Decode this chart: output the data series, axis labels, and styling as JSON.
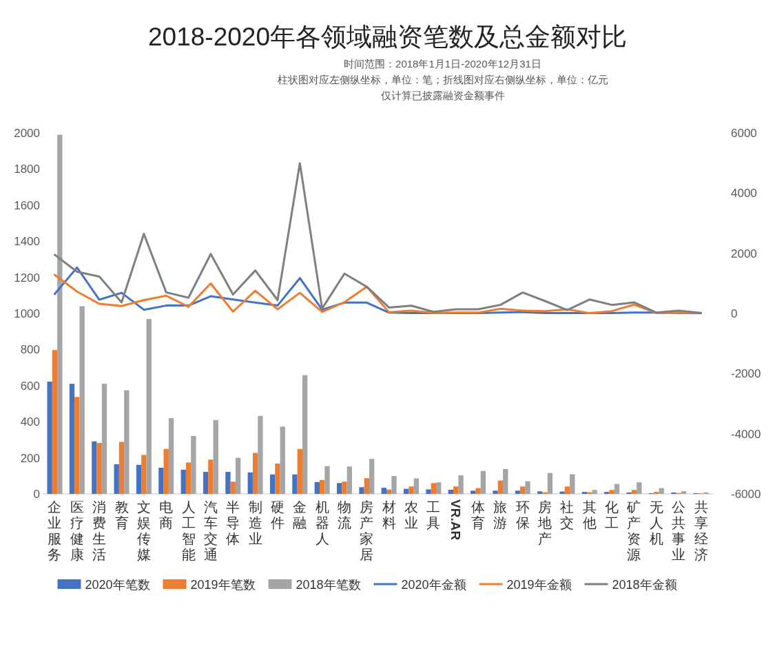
{
  "chart_data": {
    "type": "bar",
    "title": "2018-2020年各领域融资笔数及总金额对比",
    "subtitle": "时间范围：2018年1月1日-2020年12月31日",
    "annotations": [
      "柱状图对应左侧纵坐标，单位：笔；折线图对应右侧纵坐标，单位：亿元",
      "仅计算已披露融资金额事件"
    ],
    "categories": [
      "企业服务",
      "医疗健康",
      "消费生活",
      "教育",
      "文娱传媒",
      "电商",
      "人工智能",
      "汽车交通",
      "半导体",
      "制造业",
      "硬件",
      "金融",
      "机器人",
      "物流",
      "房产家居",
      "材料",
      "农业",
      "工具",
      "VR.AR",
      "体育",
      "旅游",
      "环保",
      "房地产",
      "社交",
      "其他",
      "化工",
      "矿产资源",
      "无人机",
      "公共事业",
      "共享经济"
    ],
    "series": [
      {
        "name": "2020年笔数",
        "color": "#4472c4",
        "values": [
          622,
          610,
          291,
          164,
          161,
          145,
          134,
          122,
          122,
          119,
          108,
          108,
          66,
          60,
          37,
          34,
          28,
          25,
          23,
          18,
          18,
          18,
          14,
          13,
          11,
          11,
          8,
          4,
          8,
          4
        ]
      },
      {
        "name": "2019年笔数",
        "color": "#ed7d31",
        "values": [
          797,
          537,
          282,
          288,
          216,
          249,
          174,
          190,
          68,
          227,
          168,
          249,
          77,
          68,
          87,
          24,
          41,
          60,
          41,
          32,
          74,
          41,
          9,
          41,
          9,
          22,
          22,
          11,
          5,
          3
        ]
      },
      {
        "name": "2018年笔数",
        "color": "#a5a5a5",
        "values": [
          1990,
          1040,
          610,
          574,
          969,
          420,
          321,
          409,
          200,
          432,
          373,
          658,
          154,
          152,
          194,
          99,
          86,
          64,
          103,
          127,
          138,
          70,
          116,
          109,
          22,
          55,
          64,
          32,
          15,
          8
        ]
      },
      {
        "name": "2020年金额",
        "type": "line",
        "axis": "y2",
        "color": "#4472c4",
        "values": [
          645,
          1526,
          457,
          685,
          122,
          261,
          261,
          571,
          465,
          359,
          261,
          1175,
          122,
          359,
          359,
          26,
          9,
          9,
          9,
          9,
          26,
          43,
          9,
          9,
          9,
          9,
          26,
          26,
          9,
          5
        ]
      },
      {
        "name": "2019年金额",
        "type": "line",
        "axis": "y2",
        "color": "#ed7d31",
        "values": [
          1281,
          726,
          318,
          245,
          441,
          588,
          220,
          996,
          57,
          751,
          139,
          685,
          49,
          375,
          889,
          43,
          94,
          17,
          26,
          26,
          154,
          94,
          77,
          137,
          9,
          77,
          292,
          9,
          26,
          9
        ]
      },
      {
        "name": "2018年金额",
        "type": "line",
        "axis": "y2",
        "color": "#7f7f7f",
        "values": [
          1950,
          1387,
          1224,
          367,
          2644,
          702,
          522,
          1975,
          628,
          1428,
          441,
          4994,
          163,
          1322,
          889,
          197,
          257,
          51,
          137,
          137,
          283,
          695,
          412,
          112,
          463,
          283,
          369,
          26,
          94,
          17
        ]
      }
    ],
    "ylim": [
      0,
      2000
    ],
    "yticks": [
      0,
      200,
      400,
      600,
      800,
      1000,
      1200,
      1400,
      1600,
      1800,
      2000
    ],
    "y2lim": [
      -6000,
      6000
    ],
    "y2ticks": [
      -6000,
      -4000,
      -2000,
      0,
      2000,
      4000,
      6000
    ],
    "legend": "bottom",
    "grid": false
  }
}
